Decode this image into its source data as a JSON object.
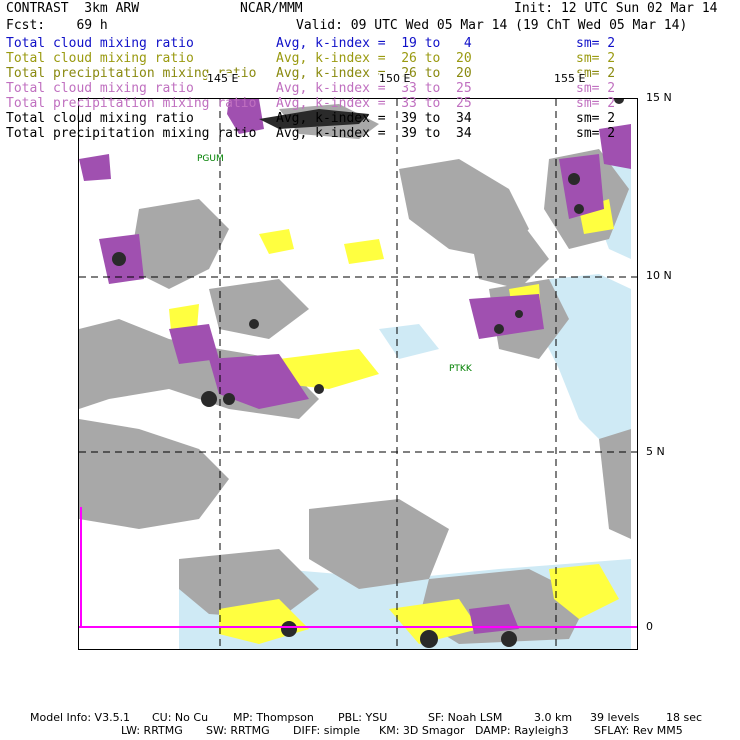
{
  "header": {
    "model": "CONTRAST  3km ARW",
    "org": "NCAR/MMM",
    "init": "Init: 12 UTC Sun 02 Mar 14",
    "fcst": "Fcst:    69 h",
    "valid": "Valid: 09 UTC Wed 05 Mar 14 (19 ChT Wed 05 Mar 14)"
  },
  "legend": [
    {
      "name": "Total cloud mixing ratio",
      "avg": "Avg, k-index =  19 to   4",
      "sm": "sm= 2",
      "color": "#1010c8"
    },
    {
      "name": "Total cloud mixing ratio",
      "avg": "Avg, k-index =  26 to  20",
      "sm": "sm= 2",
      "color": "#9a9a10"
    },
    {
      "name": "Total precipitation mixing ratio",
      "avg": "Avg, k-index =  26 to  20",
      "sm": "sm= 2",
      "color": "#8a8a10"
    },
    {
      "name": "Total cloud mixing ratio",
      "avg": "Avg, k-index =  33 to  25",
      "sm": "sm= 2",
      "color": "#c070c0"
    },
    {
      "name": "Total precipitation mixing ratio",
      "avg": "Avg, k-index =  33 to  25",
      "sm": "sm= 2",
      "color": "#c070c0"
    },
    {
      "name": "Total cloud mixing ratio",
      "avg": "Avg, k-index =  39 to  34",
      "sm": "sm= 2",
      "color": "#000000"
    },
    {
      "name": "Total precipitation mixing ratio",
      "avg": "Avg, k-index =  39 to  34",
      "sm": "sm= 2",
      "color": "#000000"
    }
  ],
  "map": {
    "lon_labels": [
      "145 E",
      "150 E",
      "155 E"
    ],
    "lat_labels": [
      "15 N",
      "10 N",
      "5 N",
      "0"
    ],
    "stations": [
      "PGUM",
      "PTKK"
    ],
    "colors": {
      "gray_cloud": "#a8a8a8",
      "light_blue": "#cfeaf5",
      "yellow": "#ffff40",
      "purple": "#a050b0",
      "dark": "#2a2a2a",
      "magenta_line": "#ff00ff"
    }
  },
  "footer": {
    "line1": [
      "Model Info: V3.5.1",
      "CU: No Cu",
      "MP: Thompson",
      "PBL: YSU",
      "SF: Noah LSM",
      "3.0 km",
      "39 levels",
      "18 sec"
    ],
    "line2": [
      "LW: RRTMG",
      "SW: RRTMG",
      "DIFF: simple",
      "KM: 3D Smagor",
      "DAMP: Rayleigh3",
      "SFLAY: Rev MM5"
    ]
  }
}
